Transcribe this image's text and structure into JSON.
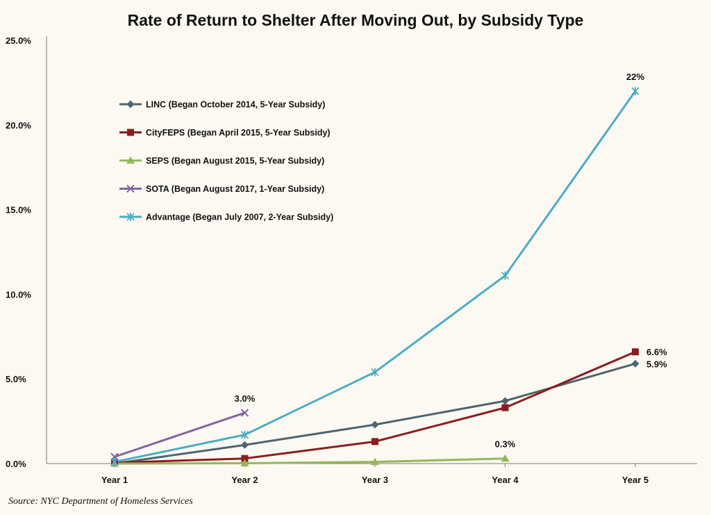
{
  "chart_data": {
    "type": "line",
    "title": "Rate of Return to Shelter After Moving Out, by Subsidy Type",
    "categories": [
      "Year 1",
      "Year 2",
      "Year 3",
      "Year 4",
      "Year 5"
    ],
    "y_ticks": [
      "0.0%",
      "5.0%",
      "10.0%",
      "15.0%",
      "20.0%",
      "25.0%"
    ],
    "ylim": [
      0,
      25
    ],
    "grid": false,
    "legend_position": "upper-left",
    "series": [
      {
        "name": "LINC (Began October 2014, 5-Year Subsidy)",
        "color": "#4f6470",
        "marker": "diamond",
        "values": [
          0.0,
          1.1,
          2.3,
          3.7,
          5.9
        ]
      },
      {
        "name": "CityFEPS (Began April 2015, 5-Year Subsidy)",
        "color": "#8b1c1f",
        "marker": "square",
        "values": [
          0.05,
          0.3,
          1.3,
          3.3,
          6.6
        ]
      },
      {
        "name": "SEPS (Began August 2015, 5-Year Subsidy)",
        "color": "#93b85a",
        "marker": "triangle",
        "values": [
          0.0,
          0.02,
          0.1,
          0.3,
          null
        ]
      },
      {
        "name": "SOTA (Began August 2017, 1-Year Subsidy)",
        "color": "#8064a2",
        "marker": "x",
        "values": [
          0.4,
          3.0,
          null,
          null,
          null
        ]
      },
      {
        "name": "Advantage (Began July 2007, 2-Year Subsidy)",
        "color": "#4bacc6",
        "marker": "star",
        "values": [
          0.1,
          1.7,
          5.4,
          11.1,
          22.0
        ]
      }
    ],
    "annotations": [
      {
        "text": "3.0%",
        "series": 3,
        "index": 1,
        "anchor": "above"
      },
      {
        "text": "22%",
        "series": 4,
        "index": 4,
        "anchor": "above"
      },
      {
        "text": "6.6%",
        "series": 1,
        "index": 4,
        "anchor": "right"
      },
      {
        "text": "5.9%",
        "series": 0,
        "index": 4,
        "anchor": "right"
      },
      {
        "text": "0.3%",
        "series": 2,
        "index": 3,
        "anchor": "above"
      }
    ],
    "source": "Source: NYC Department of Homeless Services"
  }
}
